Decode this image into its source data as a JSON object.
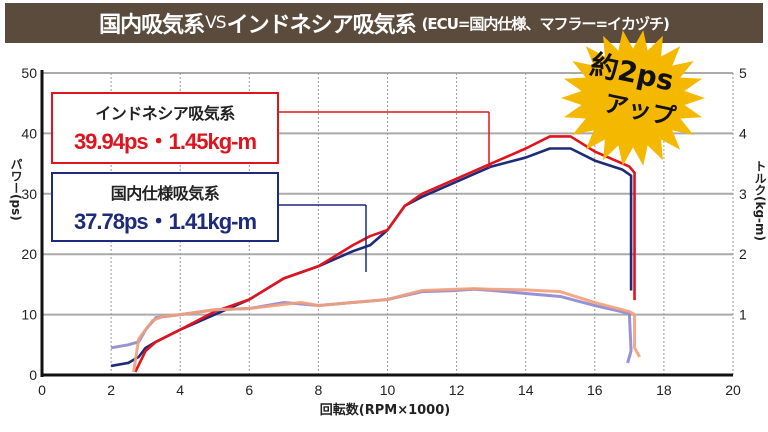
{
  "title": {
    "main_a": "国内吸気系",
    "vs": "VS",
    "main_b": "インドネシア吸気系",
    "sub": "(ECU=国内仕様、マフラー=イカヅチ)"
  },
  "badge": {
    "line1": "約2ps",
    "line2": "アップ",
    "color": "#f5b800"
  },
  "callouts": [
    {
      "name": "インドネシア吸気系",
      "value": "39.94ps・1.45kg-m",
      "color": "#e0141e"
    },
    {
      "name": "国内仕様吸気系",
      "value": "37.78ps・1.41kg-m",
      "color": "#1e2a7a"
    }
  ],
  "chart_data": {
    "type": "line",
    "xlabel": "回転数(RPM×1000)",
    "ylabel": "パワー(ps)",
    "y2label": "トルク(kg-m)",
    "xlim": [
      0,
      20
    ],
    "ylim": [
      0,
      50
    ],
    "y2lim": [
      0,
      5
    ],
    "xticks": [
      "0",
      "2",
      "4",
      "6",
      "8",
      "10",
      "12",
      "14",
      "16",
      "18",
      "20"
    ],
    "yticks": [
      "0",
      "10",
      "20",
      "30",
      "40",
      "50"
    ],
    "y2ticks": [
      "1",
      "2",
      "3",
      "4",
      "5"
    ],
    "grid": true,
    "series": [
      {
        "axis": "power",
        "color": "#1e2a7a",
        "points": [
          [
            2,
            1.5
          ],
          [
            2.5,
            2
          ],
          [
            2.8,
            3
          ],
          [
            3,
            4.5
          ],
          [
            3.3,
            5.5
          ],
          [
            4,
            7.5
          ],
          [
            5,
            10
          ],
          [
            6,
            12.5
          ],
          [
            7,
            16
          ],
          [
            8,
            18
          ],
          [
            9,
            20.5
          ],
          [
            9.5,
            21.5
          ],
          [
            10,
            24
          ],
          [
            10.5,
            28
          ],
          [
            11,
            29.5
          ],
          [
            12,
            32
          ],
          [
            13,
            34.5
          ],
          [
            14,
            36
          ],
          [
            14.7,
            37.5
          ],
          [
            15.3,
            37.5
          ],
          [
            16,
            35.5
          ],
          [
            16.8,
            34
          ],
          [
            17.05,
            33
          ],
          [
            17.05,
            14
          ]
        ]
      },
      {
        "axis": "power",
        "color": "#e0141e",
        "points": [
          [
            2.7,
            0.5
          ],
          [
            3,
            4
          ],
          [
            3.3,
            5.5
          ],
          [
            4,
            7.5
          ],
          [
            5,
            10.5
          ],
          [
            6,
            12.5
          ],
          [
            7,
            16
          ],
          [
            8,
            18
          ],
          [
            9,
            21.5
          ],
          [
            9.5,
            23
          ],
          [
            10,
            24
          ],
          [
            10.5,
            28
          ],
          [
            11,
            30
          ],
          [
            12,
            32.5
          ],
          [
            13,
            35
          ],
          [
            14,
            37.5
          ],
          [
            14.7,
            39.5
          ],
          [
            15.3,
            39.5
          ],
          [
            16,
            37
          ],
          [
            17,
            34.5
          ],
          [
            17.15,
            33.5
          ],
          [
            17.15,
            12.4
          ]
        ]
      },
      {
        "axis": "torque",
        "color": "#8c86d0",
        "points": [
          [
            2,
            0.45
          ],
          [
            2.5,
            0.5
          ],
          [
            2.8,
            0.55
          ],
          [
            3,
            0.75
          ],
          [
            3.3,
            0.95
          ],
          [
            4,
            1.0
          ],
          [
            5,
            1.08
          ],
          [
            6,
            1.1
          ],
          [
            7,
            1.2
          ],
          [
            8,
            1.15
          ],
          [
            9,
            1.2
          ],
          [
            10,
            1.25
          ],
          [
            11,
            1.38
          ],
          [
            12,
            1.4
          ],
          [
            12.5,
            1.42
          ],
          [
            13,
            1.4
          ],
          [
            14,
            1.35
          ],
          [
            15,
            1.3
          ],
          [
            16,
            1.15
          ],
          [
            17,
            1.02
          ],
          [
            17.05,
            0.4
          ],
          [
            16.95,
            0.2
          ]
        ]
      },
      {
        "axis": "torque",
        "color": "#f2a07a",
        "points": [
          [
            2.65,
            0.05
          ],
          [
            2.8,
            0.6
          ],
          [
            3.2,
            0.9
          ],
          [
            3.5,
            0.97
          ],
          [
            4,
            1.0
          ],
          [
            5,
            1.08
          ],
          [
            6,
            1.1
          ],
          [
            7,
            1.17
          ],
          [
            7.5,
            1.2
          ],
          [
            8,
            1.15
          ],
          [
            9,
            1.2
          ],
          [
            10,
            1.25
          ],
          [
            11,
            1.4
          ],
          [
            12,
            1.42
          ],
          [
            12.5,
            1.43
          ],
          [
            13,
            1.42
          ],
          [
            14,
            1.41
          ],
          [
            15,
            1.38
          ],
          [
            16,
            1.2
          ],
          [
            17,
            1.05
          ],
          [
            17.15,
            1.0
          ],
          [
            17.15,
            0.45
          ],
          [
            17.3,
            0.3
          ]
        ]
      }
    ]
  }
}
